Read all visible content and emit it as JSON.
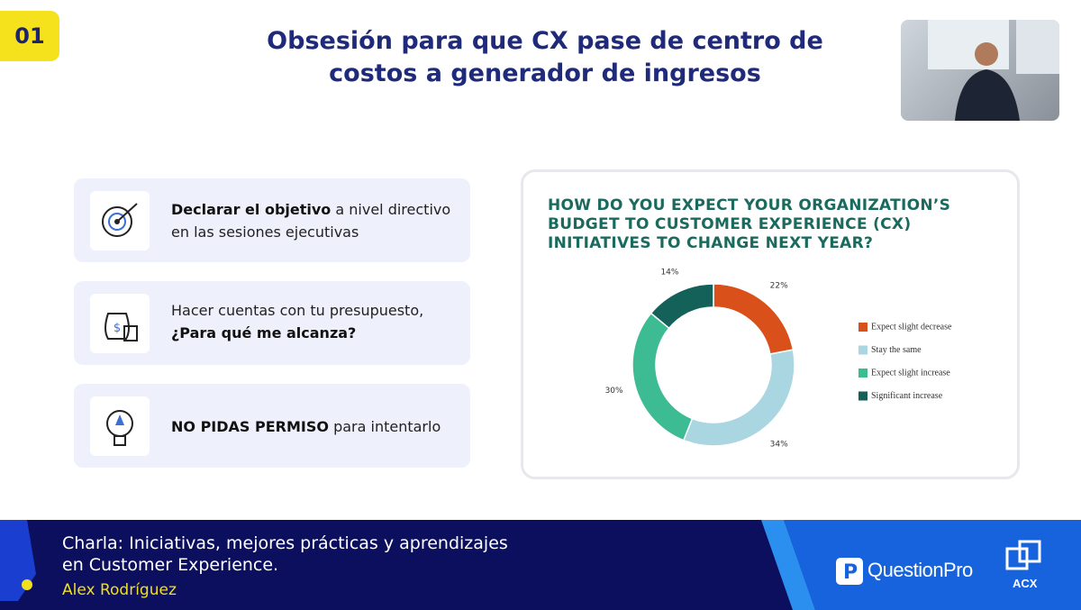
{
  "badge": "01",
  "header": {
    "title_lines": [
      "Obsesión para que CX pase de centro de",
      "costos a generador de ingresos"
    ]
  },
  "items": [
    {
      "lines": [
        [
          {
            "text": "Declarar el objetivo",
            "bold": true
          },
          {
            "text": " a nivel directivo",
            "bold": false
          }
        ],
        [
          {
            "text": "en las sesiones ejecutivas",
            "bold": false
          }
        ]
      ]
    },
    {
      "lines": [
        [
          {
            "text": "Hacer cuentas con tu presupuesto,",
            "bold": false
          }
        ],
        [
          {
            "text": "¿Para qué me alcanza?",
            "bold": true
          }
        ]
      ]
    },
    {
      "lines": [
        [
          {
            "text": "NO PIDAS PERMISO",
            "bold": true
          },
          {
            "text": " para intentarlo",
            "bold": false
          }
        ]
      ]
    }
  ],
  "chart_data": {
    "type": "donut",
    "title": "HOW DO YOU EXPECT YOUR ORGANIZATION’S BUDGET TO CUSTOMER EXPERIENCE (CX) INITIATIVES TO CHANGE NEXT YEAR?",
    "categories": [
      "Expect slight decrease",
      "Stay the same",
      "Expect slight increase",
      "Significant increase"
    ],
    "values": [
      22,
      34,
      30,
      14
    ],
    "value_labels": [
      "22%",
      "34%",
      "30%",
      "14%"
    ],
    "colors": [
      "#d9501a",
      "#a9d6e0",
      "#3dbb93",
      "#14615a"
    ]
  },
  "banner": {
    "title_lines": [
      "Charla: Iniciativas, mejores prácticas y aprendizajes",
      "en Customer Experience."
    ],
    "speaker": "Alex Rodríguez",
    "brand": "QuestionPro",
    "brand2": "ACX"
  }
}
